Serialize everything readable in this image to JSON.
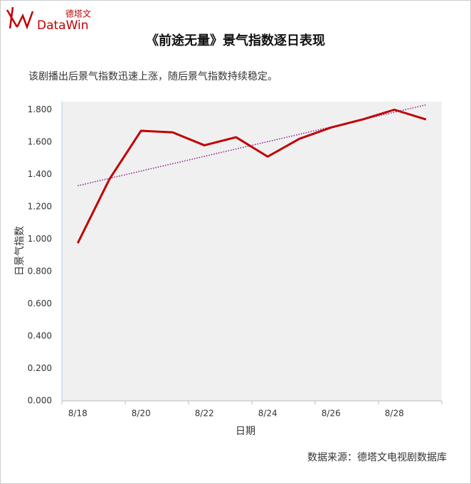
{
  "logo": {
    "name": "DataWin",
    "cn": "德塔文"
  },
  "chart_data": {
    "type": "line",
    "title": "《前途无量》景气指数逐日表现",
    "subtitle": "该剧播出后景气指数迅速上涨，随后景气指数持续稳定。",
    "x_label": "日期",
    "y_label": "日景气指数",
    "source": "数据来源：德塔文电视剧数据库",
    "categories": [
      "8/18",
      null,
      "8/20",
      null,
      "8/22",
      null,
      "8/24",
      null,
      "8/26",
      null,
      "8/28",
      null
    ],
    "series": [
      {
        "color": "#c00000",
        "values": [
          0.975,
          1.37,
          1.67,
          1.66,
          1.58,
          1.63,
          1.51,
          1.62,
          1.69,
          1.74,
          1.8,
          1.74
        ]
      }
    ],
    "trendline": {
      "color": "#8b1a8b",
      "values": [
        1.33,
        1.83
      ]
    },
    "ylim": [
      0,
      1.85
    ],
    "yticks": [
      {
        "value": 0,
        "label": "0.000"
      },
      {
        "value": 0.2,
        "label": "0.200"
      },
      {
        "value": 0.4,
        "label": "0.400"
      },
      {
        "value": 0.6,
        "label": "0.600"
      },
      {
        "value": 0.8,
        "label": "0.800"
      },
      {
        "value": 1,
        "label": "1.000"
      },
      {
        "value": 1.2,
        "label": "1.200"
      },
      {
        "value": 1.4,
        "label": "1.400"
      },
      {
        "value": 1.6,
        "label": "1.600"
      },
      {
        "value": 1.8,
        "label": "1.800"
      }
    ]
  }
}
